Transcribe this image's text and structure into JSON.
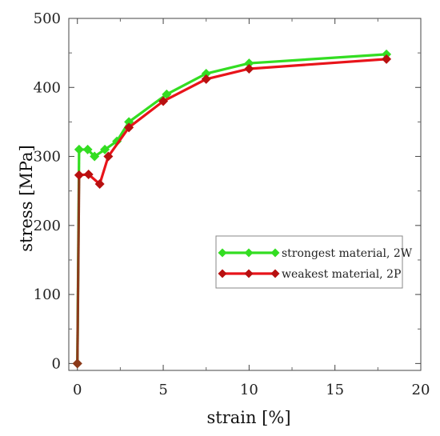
{
  "chart_data": {
    "type": "line",
    "title": "",
    "xlabel": "strain [%]",
    "ylabel": "stress [MPa]",
    "xlim": [
      -0.5,
      20
    ],
    "ylim": [
      -10,
      500
    ],
    "xticks": [
      0,
      5,
      10,
      15,
      20
    ],
    "yticks": [
      0,
      100,
      200,
      300,
      400,
      500
    ],
    "grid": false,
    "legend_position": "center-right",
    "series": [
      {
        "name": "strongest material, 2W",
        "color": "#33dd22",
        "points": [
          [
            0,
            0
          ],
          [
            0.1,
            310
          ],
          [
            0.6,
            310
          ],
          [
            1.0,
            300
          ],
          [
            1.6,
            310
          ],
          [
            2.3,
            322
          ],
          [
            3.0,
            350
          ],
          [
            5.2,
            390
          ],
          [
            7.5,
            420
          ],
          [
            10.0,
            435
          ],
          [
            18.0,
            448
          ]
        ]
      },
      {
        "name": "weakest material, 2P",
        "color": "#e8141a",
        "marker_color": "#b81010",
        "points": [
          [
            0,
            0
          ],
          [
            0.1,
            273
          ],
          [
            0.65,
            274
          ],
          [
            1.3,
            260
          ],
          [
            1.8,
            300
          ],
          [
            3.0,
            342
          ],
          [
            5.0,
            380
          ],
          [
            7.5,
            412
          ],
          [
            10.0,
            427
          ],
          [
            18.0,
            441
          ]
        ]
      }
    ],
    "initial_segment_color": "#8b3a1a"
  }
}
